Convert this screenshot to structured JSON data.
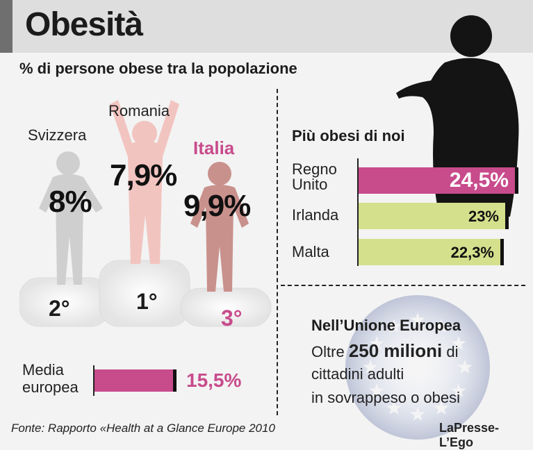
{
  "header": {
    "title": "Obesità"
  },
  "subtitle": "% di persone obese tra la popolazione",
  "podium": [
    {
      "country": "Romania",
      "value_label": "7,9%",
      "place": "1°"
    },
    {
      "country": "Svizzera",
      "value_label": "8%",
      "place": "2°"
    },
    {
      "country": "Italia",
      "value_label": "9,9%",
      "place": "3°"
    }
  ],
  "media": {
    "label_line1": "Media",
    "label_line2": "europea",
    "value_label": "15,5%"
  },
  "right": {
    "title": "Più obesi di noi",
    "bars": [
      {
        "country_line1": "Regno",
        "country_line2": "Unito",
        "value_label": "24,5%"
      },
      {
        "country_line1": "Irlanda",
        "country_line2": "",
        "value_label": "23%"
      },
      {
        "country_line1": "Malta",
        "country_line2": "",
        "value_label": "22,3%"
      }
    ]
  },
  "eu": {
    "title": "Nell’Unione Europea",
    "line1_pre": "Oltre",
    "line1_big": "250 milioni",
    "line1_post": "di",
    "line2": "cittadini adulti",
    "line3": "in sovrappeso o obesi"
  },
  "footer": {
    "source": "Fonte: Rapporto «Health at a Glance Europe 2010",
    "brand": "LaPresse-L’Ego"
  },
  "colors": {
    "pink": "#c84b8c",
    "lime": "#d4e08c",
    "romania": "#f2c4c0",
    "svizzera": "#cfcfcf",
    "italia": "#c9918c"
  },
  "chart_data": [
    {
      "type": "bar",
      "title": "% di persone obese tra la popolazione",
      "categories": [
        "Svizzera",
        "Romania",
        "Italia",
        "Media europea"
      ],
      "values": [
        8,
        7.9,
        9.9,
        15.5
      ],
      "data_labels": [
        "8%",
        "7,9%",
        "9,9%",
        "15,5%"
      ]
    },
    {
      "type": "bar",
      "title": "Più obesi di noi",
      "categories": [
        "Regno Unito",
        "Irlanda",
        "Malta"
      ],
      "values": [
        24.5,
        23,
        22.3
      ],
      "data_labels": [
        "24,5%",
        "23%",
        "22,3%"
      ]
    }
  ]
}
